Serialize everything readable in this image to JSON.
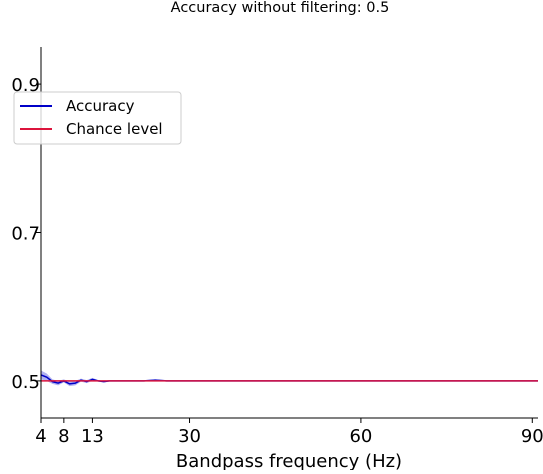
{
  "chart_data": {
    "type": "line",
    "title": "Accuracy without filtering: 0.5",
    "xlabel": "Bandpass frequency (Hz)",
    "ylabel": "",
    "xlim": [
      4,
      91
    ],
    "ylim": [
      0.45,
      0.95
    ],
    "x_ticks": [
      4,
      8,
      13,
      30,
      60,
      90
    ],
    "y_ticks": [
      0.5,
      0.7,
      0.9
    ],
    "grid": false,
    "legend_position": "upper-left",
    "colors": {
      "accuracy": "#0000c8",
      "accuracy_band": "#7f7fe6",
      "chance": "#dc143c",
      "axis": "#000000"
    },
    "series": [
      {
        "name": "Accuracy",
        "color": "#0000c8",
        "x": [
          4,
          5,
          6,
          7,
          8,
          9,
          10,
          11,
          12,
          13,
          14,
          15,
          16,
          17,
          18,
          19,
          20,
          22,
          24,
          26,
          28,
          30,
          35,
          40,
          45,
          50,
          55,
          60,
          65,
          70,
          75,
          80,
          85,
          90,
          91
        ],
        "y": [
          0.508,
          0.505,
          0.499,
          0.497,
          0.5,
          0.496,
          0.497,
          0.501,
          0.499,
          0.502,
          0.5,
          0.499,
          0.5,
          0.5,
          0.5,
          0.5,
          0.5,
          0.5,
          0.501,
          0.5,
          0.5,
          0.5,
          0.5,
          0.5,
          0.5,
          0.5,
          0.5,
          0.5,
          0.5,
          0.5,
          0.5,
          0.5,
          0.5,
          0.5,
          0.5
        ],
        "band": [
          0.006,
          0.005,
          0.003,
          0.003,
          0.002,
          0.003,
          0.003,
          0.002,
          0.002,
          0.002,
          0.001,
          0.001,
          0.001,
          0.001,
          0.001,
          0.001,
          0.001,
          0.001,
          0.001,
          0.001,
          0.001,
          0.001,
          0.001,
          0.001,
          0.001,
          0.001,
          0.001,
          0.001,
          0.001,
          0.001,
          0.001,
          0.001,
          0.001,
          0.001,
          0.001
        ]
      },
      {
        "name": "Chance level",
        "color": "#dc143c",
        "x": [
          4,
          91
        ],
        "y": [
          0.5,
          0.5
        ]
      }
    ]
  }
}
